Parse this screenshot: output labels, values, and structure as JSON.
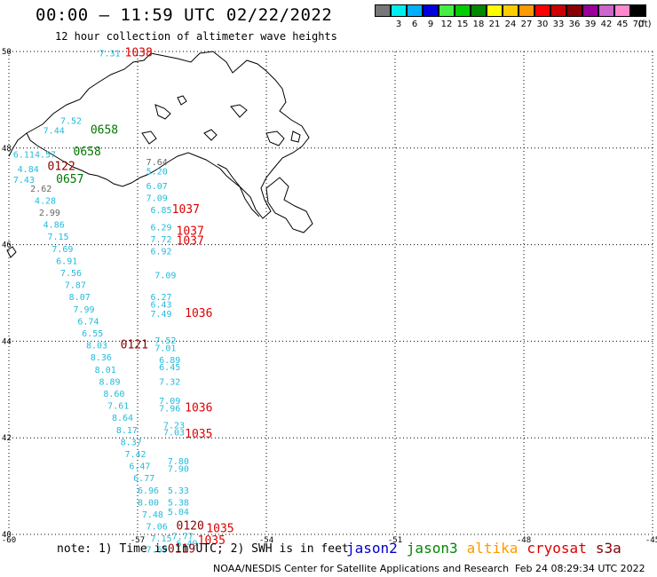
{
  "header": {
    "title": "00:00 – 11:59 UTC 02/22/2022",
    "subtitle": "12 hour collection of altimeter wave heights"
  },
  "colorbar": {
    "bins": [
      {
        "label": "",
        "color": "#777777"
      },
      {
        "label": "3",
        "color": "#00eeee"
      },
      {
        "label": "6",
        "color": "#00b0ff"
      },
      {
        "label": "9",
        "color": "#0000dd"
      },
      {
        "label": "12",
        "color": "#44ee44"
      },
      {
        "label": "15",
        "color": "#00cc00"
      },
      {
        "label": "18",
        "color": "#008800"
      },
      {
        "label": "21",
        "color": "#ffff00"
      },
      {
        "label": "24",
        "color": "#ffcc00"
      },
      {
        "label": "27",
        "color": "#ff9900"
      },
      {
        "label": "30",
        "color": "#ff0000"
      },
      {
        "label": "33",
        "color": "#cc0000"
      },
      {
        "label": "36",
        "color": "#880000"
      },
      {
        "label": "39",
        "color": "#990099"
      },
      {
        "label": "42",
        "color": "#cc66cc"
      },
      {
        "label": "45",
        "color": "#ff88cc"
      },
      {
        "label": "70",
        "color": "#000000"
      }
    ],
    "units": "(ft)"
  },
  "axes": {
    "lon_ticks": [
      "-60",
      "-57",
      "-54",
      "-51",
      "-48",
      "-45"
    ],
    "lat_ticks": [
      "50",
      "48",
      "46",
      "44",
      "42",
      "40"
    ],
    "lon_range": [
      -60,
      -45
    ],
    "lat_range": [
      40,
      50
    ]
  },
  "colors": {
    "tan_cyan": "#22bbdd",
    "gray": "#666666",
    "green": "#007700",
    "red": "#dd0000",
    "darkred": "#880000",
    "blue": "#0000cc"
  },
  "map_labels": [
    {
      "text": "7.31",
      "lon": -57.9,
      "lat": 49.9,
      "c": "tan_cyan"
    },
    {
      "text": "1038",
      "lon": -57.3,
      "lat": 49.9,
      "c": "red"
    },
    {
      "text": "7.52",
      "lon": -58.8,
      "lat": 48.5,
      "c": "tan_cyan"
    },
    {
      "text": "7.44",
      "lon": -59.2,
      "lat": 48.3,
      "c": "tan_cyan"
    },
    {
      "text": "0658",
      "lon": -58.1,
      "lat": 48.3,
      "c": "green"
    },
    {
      "text": "6.11",
      "lon": -59.9,
      "lat": 47.8,
      "c": "tan_cyan"
    },
    {
      "text": "4.57",
      "lon": -59.4,
      "lat": 47.8,
      "c": "tan_cyan"
    },
    {
      "text": "0658",
      "lon": -58.5,
      "lat": 47.85,
      "c": "green"
    },
    {
      "text": "0122",
      "lon": -59.1,
      "lat": 47.55,
      "c": "darkred"
    },
    {
      "text": "4.84",
      "lon": -59.8,
      "lat": 47.5,
      "c": "tan_cyan"
    },
    {
      "text": "0657",
      "lon": -58.9,
      "lat": 47.28,
      "c": "green"
    },
    {
      "text": "7.43",
      "lon": -59.9,
      "lat": 47.28,
      "c": "tan_cyan"
    },
    {
      "text": "7.64",
      "lon": -56.8,
      "lat": 47.65,
      "c": "gray"
    },
    {
      "text": "5.20",
      "lon": -56.8,
      "lat": 47.45,
      "c": "tan_cyan"
    },
    {
      "text": "6.07",
      "lon": -56.8,
      "lat": 47.15,
      "c": "tan_cyan"
    },
    {
      "text": "2.62",
      "lon": -59.5,
      "lat": 47.1,
      "c": "gray"
    },
    {
      "text": "7.09",
      "lon": -56.8,
      "lat": 46.9,
      "c": "tan_cyan"
    },
    {
      "text": "4.28",
      "lon": -59.4,
      "lat": 46.85,
      "c": "tan_cyan"
    },
    {
      "text": "6.85",
      "lon": -56.7,
      "lat": 46.65,
      "c": "tan_cyan"
    },
    {
      "text": "1037",
      "lon": -56.2,
      "lat": 46.65,
      "c": "red"
    },
    {
      "text": "2.99",
      "lon": -59.3,
      "lat": 46.6,
      "c": "gray"
    },
    {
      "text": "4.86",
      "lon": -59.2,
      "lat": 46.35,
      "c": "tan_cyan"
    },
    {
      "text": "6.29",
      "lon": -56.7,
      "lat": 46.3,
      "c": "tan_cyan"
    },
    {
      "text": "1037",
      "lon": -56.1,
      "lat": 46.2,
      "c": "red"
    },
    {
      "text": "7.15",
      "lon": -59.1,
      "lat": 46.1,
      "c": "tan_cyan"
    },
    {
      "text": "7.72",
      "lon": -56.7,
      "lat": 46.05,
      "c": "tan_cyan"
    },
    {
      "text": "1037",
      "lon": -56.1,
      "lat": 46.0,
      "c": "red"
    },
    {
      "text": "7.69",
      "lon": -59.0,
      "lat": 45.85,
      "c": "tan_cyan"
    },
    {
      "text": "6.92",
      "lon": -56.7,
      "lat": 45.8,
      "c": "tan_cyan"
    },
    {
      "text": "6.91",
      "lon": -58.9,
      "lat": 45.6,
      "c": "tan_cyan"
    },
    {
      "text": "7.56",
      "lon": -58.8,
      "lat": 45.35,
      "c": "tan_cyan"
    },
    {
      "text": "7.09",
      "lon": -56.6,
      "lat": 45.3,
      "c": "tan_cyan"
    },
    {
      "text": "7.87",
      "lon": -58.7,
      "lat": 45.1,
      "c": "tan_cyan"
    },
    {
      "text": "8.07",
      "lon": -58.6,
      "lat": 44.85,
      "c": "tan_cyan"
    },
    {
      "text": "6.27",
      "lon": -56.7,
      "lat": 44.85,
      "c": "tan_cyan"
    },
    {
      "text": "6.43",
      "lon": -56.7,
      "lat": 44.7,
      "c": "tan_cyan"
    },
    {
      "text": "7.99",
      "lon": -58.5,
      "lat": 44.6,
      "c": "tan_cyan"
    },
    {
      "text": "1036",
      "lon": -55.9,
      "lat": 44.5,
      "c": "red"
    },
    {
      "text": "7.49",
      "lon": -56.7,
      "lat": 44.5,
      "c": "tan_cyan"
    },
    {
      "text": "6.74",
      "lon": -58.4,
      "lat": 44.35,
      "c": "tan_cyan"
    },
    {
      "text": "6.55",
      "lon": -58.3,
      "lat": 44.1,
      "c": "tan_cyan"
    },
    {
      "text": "7.52",
      "lon": -56.6,
      "lat": 43.95,
      "c": "tan_cyan"
    },
    {
      "text": "8.03",
      "lon": -58.2,
      "lat": 43.85,
      "c": "tan_cyan"
    },
    {
      "text": "0121",
      "lon": -57.4,
      "lat": 43.85,
      "c": "darkred"
    },
    {
      "text": "7.01",
      "lon": -56.6,
      "lat": 43.8,
      "c": "tan_cyan"
    },
    {
      "text": "8.36",
      "lon": -58.1,
      "lat": 43.6,
      "c": "tan_cyan"
    },
    {
      "text": "6.89",
      "lon": -56.5,
      "lat": 43.55,
      "c": "tan_cyan"
    },
    {
      "text": "6.45",
      "lon": -56.5,
      "lat": 43.4,
      "c": "tan_cyan"
    },
    {
      "text": "8.01",
      "lon": -58.0,
      "lat": 43.35,
      "c": "tan_cyan"
    },
    {
      "text": "8.89",
      "lon": -57.9,
      "lat": 43.1,
      "c": "tan_cyan"
    },
    {
      "text": "7.32",
      "lon": -56.5,
      "lat": 43.1,
      "c": "tan_cyan"
    },
    {
      "text": "8.60",
      "lon": -57.8,
      "lat": 42.85,
      "c": "tan_cyan"
    },
    {
      "text": "7.09",
      "lon": -56.5,
      "lat": 42.7,
      "c": "tan_cyan"
    },
    {
      "text": "7.61",
      "lon": -57.7,
      "lat": 42.6,
      "c": "tan_cyan"
    },
    {
      "text": "1036",
      "lon": -55.9,
      "lat": 42.55,
      "c": "red"
    },
    {
      "text": "7.96",
      "lon": -56.5,
      "lat": 42.55,
      "c": "tan_cyan"
    },
    {
      "text": "8.64",
      "lon": -57.6,
      "lat": 42.35,
      "c": "tan_cyan"
    },
    {
      "text": "8.17",
      "lon": -57.5,
      "lat": 42.1,
      "c": "tan_cyan"
    },
    {
      "text": "7.23",
      "lon": -56.4,
      "lat": 42.2,
      "c": "tan_cyan"
    },
    {
      "text": "8.37",
      "lon": -57.4,
      "lat": 41.85,
      "c": "tan_cyan"
    },
    {
      "text": "7.03",
      "lon": -56.4,
      "lat": 42.05,
      "c": "tan_cyan"
    },
    {
      "text": "1035",
      "lon": -55.9,
      "lat": 42.0,
      "c": "red"
    },
    {
      "text": "7.42",
      "lon": -57.3,
      "lat": 41.6,
      "c": "tan_cyan"
    },
    {
      "text": "7.80",
      "lon": -56.3,
      "lat": 41.45,
      "c": "tan_cyan"
    },
    {
      "text": "6.47",
      "lon": -57.2,
      "lat": 41.35,
      "c": "tan_cyan"
    },
    {
      "text": "7.90",
      "lon": -56.3,
      "lat": 41.3,
      "c": "tan_cyan"
    },
    {
      "text": "6.77",
      "lon": -57.1,
      "lat": 41.1,
      "c": "tan_cyan"
    },
    {
      "text": "6.96",
      "lon": -57.0,
      "lat": 40.85,
      "c": "tan_cyan"
    },
    {
      "text": "5.33",
      "lon": -56.3,
      "lat": 40.85,
      "c": "tan_cyan"
    },
    {
      "text": "8.00",
      "lon": -57.0,
      "lat": 40.6,
      "c": "tan_cyan"
    },
    {
      "text": "5.38",
      "lon": -56.3,
      "lat": 40.6,
      "c": "tan_cyan"
    },
    {
      "text": "7.48",
      "lon": -56.9,
      "lat": 40.35,
      "c": "tan_cyan"
    },
    {
      "text": "5.04",
      "lon": -56.3,
      "lat": 40.4,
      "c": "tan_cyan"
    },
    {
      "text": "7.06",
      "lon": -56.8,
      "lat": 40.1,
      "c": "tan_cyan"
    },
    {
      "text": "0120",
      "lon": -56.1,
      "lat": 40.1,
      "c": "darkred"
    },
    {
      "text": "1035",
      "lon": -55.4,
      "lat": 40.05,
      "c": "red"
    },
    {
      "text": "7.15",
      "lon": -56.7,
      "lat": 39.85,
      "c": "tan_cyan"
    },
    {
      "text": "7.77",
      "lon": -56.2,
      "lat": 39.9,
      "c": "tan_cyan"
    },
    {
      "text": "1035",
      "lon": -55.6,
      "lat": 39.8,
      "c": "red"
    },
    {
      "text": "6.49",
      "lon": -56.1,
      "lat": 39.75,
      "c": "tan_cyan"
    },
    {
      "text": "7.69",
      "lon": -56.8,
      "lat": 39.62,
      "c": "tan_cyan"
    },
    {
      "text": "0119",
      "lon": -56.3,
      "lat": 39.62,
      "c": "darkred"
    }
  ],
  "footer": {
    "note": "note: 1) Time is in UTC; 2) SWH is in feet",
    "satellites": [
      {
        "name": "jason2",
        "color": "#0000cc"
      },
      {
        "name": "jason3",
        "color": "#008800"
      },
      {
        "name": "altika",
        "color": "#ff9900"
      },
      {
        "name": "cryosat",
        "color": "#dd0000"
      },
      {
        "name": "s3a",
        "color": "#880000"
      }
    ],
    "credit": "NOAA/NESDIS Center for Satellite Applications and Research",
    "timestamp": "Feb 24 08:29:34 UTC 2022"
  }
}
